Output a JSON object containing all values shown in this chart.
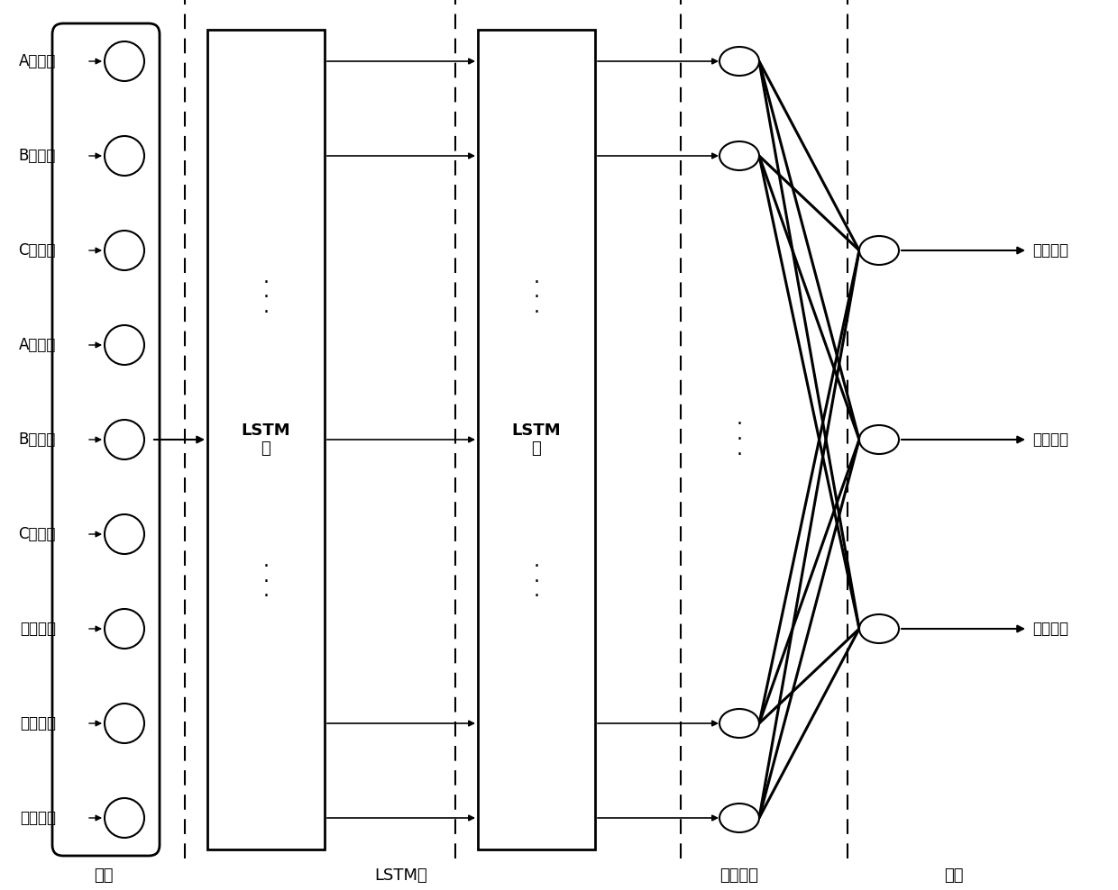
{
  "background_color": "#ffffff",
  "input_labels": [
    "A相电流",
    "B相电流",
    "C相电流",
    "A相电压",
    "B相电压",
    "C相电压",
    "励磁电压",
    "有功功率",
    "无功功率"
  ],
  "output_labels": [
    "励磁电流",
    "转子振动",
    "定子振动"
  ],
  "lstm1_label": "LSTM\n层",
  "lstm2_label": "LSTM\n层",
  "section_labels": [
    "输入",
    "LSTM层",
    "全连接层",
    "输出"
  ],
  "dashed_line_color": "#000000",
  "box_color": "#000000",
  "arrow_color": "#000000",
  "node_color": "#ffffff",
  "node_edge_color": "#000000",
  "text_color": "#000000",
  "font_size_labels": 12,
  "font_size_section": 13,
  "font_size_lstm": 13,
  "dots_fontsize": 18
}
